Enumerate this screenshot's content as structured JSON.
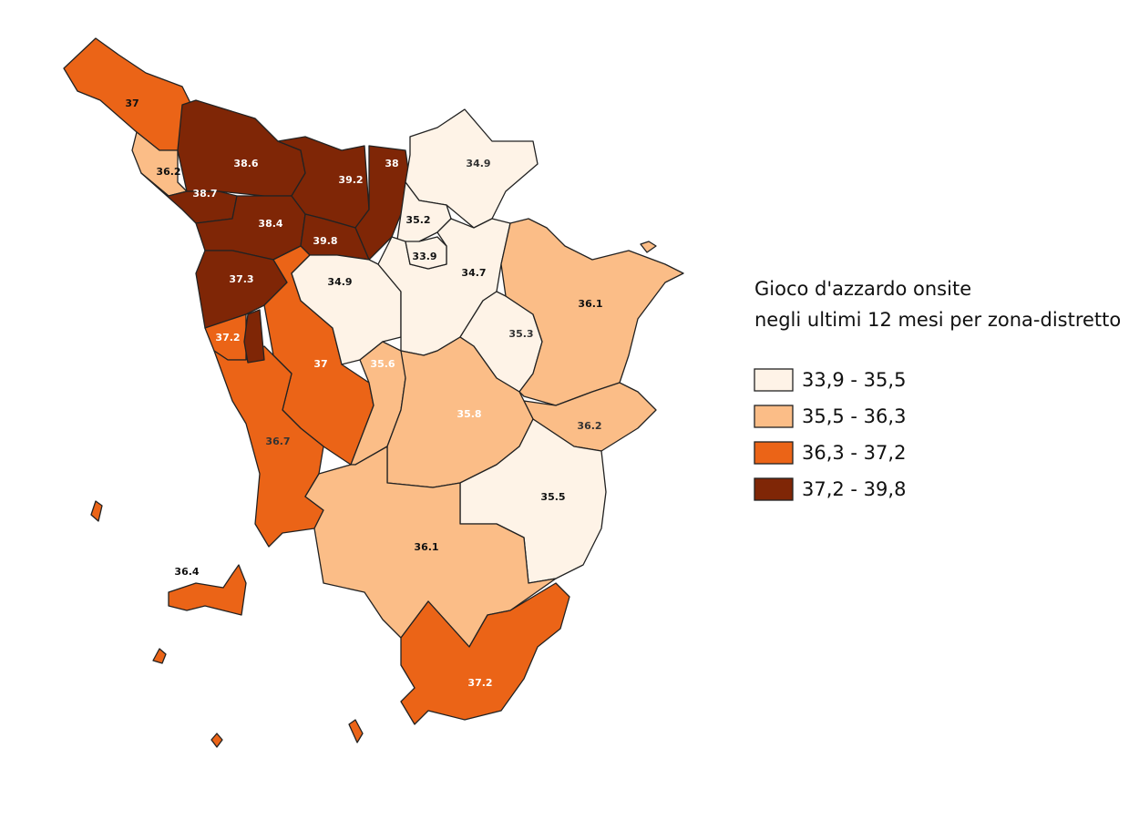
{
  "map": {
    "title": [
      "Gioco d'azzardo onsite",
      "negli ultimi 12 mesi per zona-distretto"
    ],
    "legend": [
      {
        "label": "33,9 - 35,5",
        "min": 33.9,
        "max": 35.5,
        "color": "#fef3e7"
      },
      {
        "label": "35,5 - 36,3",
        "min": 35.5,
        "max": 36.3,
        "color": "#fbbd87"
      },
      {
        "label": "36,3 - 37,2",
        "min": 36.3,
        "max": 37.2,
        "color": "#eb6417"
      },
      {
        "label": "37,2 - 39,8",
        "min": 37.2,
        "max": 39.8,
        "color": "#7f2606"
      }
    ],
    "regions": [
      37,
      36.2,
      38.6,
      38.7,
      38.4,
      39.2,
      38,
      39.8,
      37.3,
      37.2,
      37,
      36.7,
      34.9,
      35.6,
      34.9,
      35.2,
      34.7,
      33.9,
      35.3,
      36.1,
      36.2,
      35.8,
      35.5,
      36.1,
      37.2,
      36.4
    ]
  }
}
